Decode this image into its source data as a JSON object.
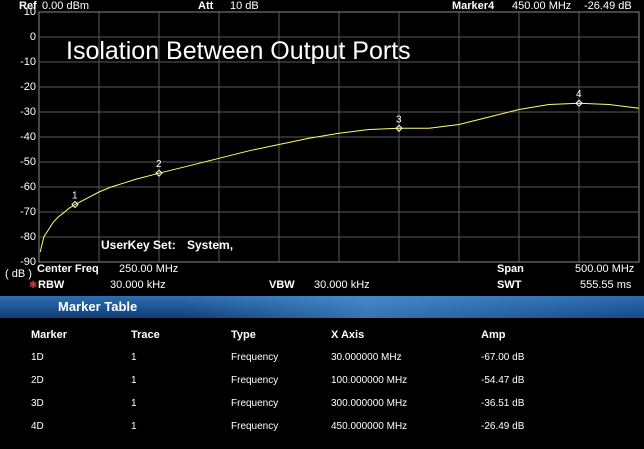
{
  "header": {
    "ref_label": "Ref",
    "ref_value": "0.00 dBm",
    "att_label": "Att",
    "att_value": "10 dB",
    "marker_label": "Marker4",
    "marker_freq": "450.00 MHz",
    "marker_amp": "-26.49 dB"
  },
  "plot": {
    "title": "Isolation Between Output Ports",
    "userkey_label": "UserKey Set:",
    "userkey_value": "System,",
    "unit_label": "( dB )",
    "trace_color": "#ffff66",
    "grid_color": "#5a5a5a"
  },
  "chart_data": {
    "type": "line",
    "title": "Isolation Between Output Ports",
    "xlabel": "",
    "ylabel": "( dB )",
    "xlim": [
      0,
      500
    ],
    "ylim": [
      -90,
      10
    ],
    "y_ticks": [
      "10",
      "0",
      "-10",
      "-20",
      "-30",
      "-40",
      "-50",
      "-60",
      "-70",
      "-80",
      "-90"
    ],
    "grid": true,
    "series": [
      {
        "x": [
          1,
          4,
          8,
          12,
          16,
          20,
          25,
          30,
          40,
          50,
          60,
          70,
          80,
          100,
          125,
          150,
          175,
          200,
          225,
          250,
          275,
          300,
          325,
          350,
          375,
          400,
          425,
          450,
          475,
          500
        ],
        "values": [
          -86,
          -80,
          -77,
          -74,
          -72,
          -70.5,
          -68.5,
          -67,
          -64.5,
          -62,
          -60,
          -58.5,
          -57,
          -54.47,
          -51.5,
          -48.5,
          -45.5,
          -43,
          -40.5,
          -38.5,
          -37,
          -36.51,
          -36.5,
          -35,
          -32,
          -29,
          -27,
          -26.49,
          -27,
          -28.5
        ]
      }
    ],
    "markers": [
      {
        "label": "1",
        "x": 30,
        "y": -67.0
      },
      {
        "label": "2",
        "x": 100,
        "y": -54.47
      },
      {
        "label": "3",
        "x": 300,
        "y": -36.51
      },
      {
        "label": "4",
        "x": 450,
        "y": -26.49
      }
    ]
  },
  "footer": {
    "center_freq_label": "Center Freq",
    "center_freq_value": "250.00 MHz",
    "span_label": "Span",
    "span_value": "500.00 MHz",
    "rbw_label": "RBW",
    "rbw_value": "30.000 kHz",
    "vbw_label": "VBW",
    "vbw_value": "30.000 kHz",
    "swt_label": "SWT",
    "swt_value": "555.55 ms"
  },
  "marker_table": {
    "title": "Marker Table",
    "columns": [
      "Marker",
      "Trace",
      "Type",
      "X Axis",
      "Amp"
    ],
    "rows": [
      {
        "marker": "1D",
        "trace": "1",
        "type": "Frequency",
        "x_axis": "30.000000 MHz",
        "amp": "-67.00 dB"
      },
      {
        "marker": "2D",
        "trace": "1",
        "type": "Frequency",
        "x_axis": "100.000000 MHz",
        "amp": "-54.47 dB"
      },
      {
        "marker": "3D",
        "trace": "1",
        "type": "Frequency",
        "x_axis": "300.000000 MHz",
        "amp": "-36.51 dB"
      },
      {
        "marker": "4D",
        "trace": "1",
        "type": "Frequency",
        "x_axis": "450.000000 MHz",
        "amp": "-26.49 dB"
      }
    ]
  }
}
